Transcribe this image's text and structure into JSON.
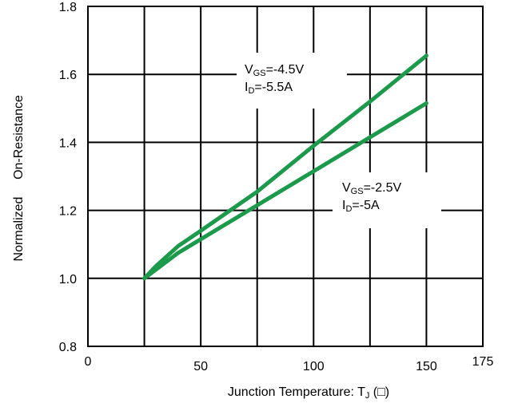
{
  "chart_data": {
    "type": "line",
    "title": "",
    "xlabel": "Junction Temperature: T",
    "xlabel_subscript": "J",
    "xlabel_unit": " (□)",
    "ylabel_part1": "Normalized",
    "ylabel_part2": "On-Resistance",
    "xlim": [
      0,
      175
    ],
    "ylim": [
      0.8,
      1.8
    ],
    "x_ticks": [
      0,
      50,
      100,
      150,
      175
    ],
    "x_tick_labels": [
      "0",
      "50",
      "100",
      "150",
      "175"
    ],
    "y_ticks": [
      0.8,
      1.0,
      1.2,
      1.4,
      1.6,
      1.8
    ],
    "y_tick_labels": [
      "0.8",
      "1.0",
      "1.2",
      "1.4",
      "1.6",
      "1.8"
    ],
    "grid": true,
    "line_color": "#1a9a4a",
    "series": [
      {
        "x": [
          25,
          30,
          40,
          50,
          75,
          100,
          125,
          150
        ],
        "y": [
          1.0,
          1.035,
          1.095,
          1.14,
          1.255,
          1.39,
          1.52,
          1.655
        ]
      },
      {
        "x": [
          25,
          30,
          40,
          50,
          75,
          100,
          125,
          150
        ],
        "y": [
          1.0,
          1.025,
          1.075,
          1.115,
          1.215,
          1.315,
          1.415,
          1.515
        ]
      }
    ],
    "annotations": [
      {
        "lines": [
          {
            "main": "V",
            "sub": "GS",
            "rest": "=-4.5V"
          },
          {
            "main": "I",
            "sub": "D",
            "rest": "=-5.5A"
          }
        ]
      },
      {
        "lines": [
          {
            "main": "V",
            "sub": "GS",
            "rest": "=-2.5V"
          },
          {
            "main": "I",
            "sub": "D",
            "rest": "=-5A"
          }
        ]
      }
    ]
  }
}
